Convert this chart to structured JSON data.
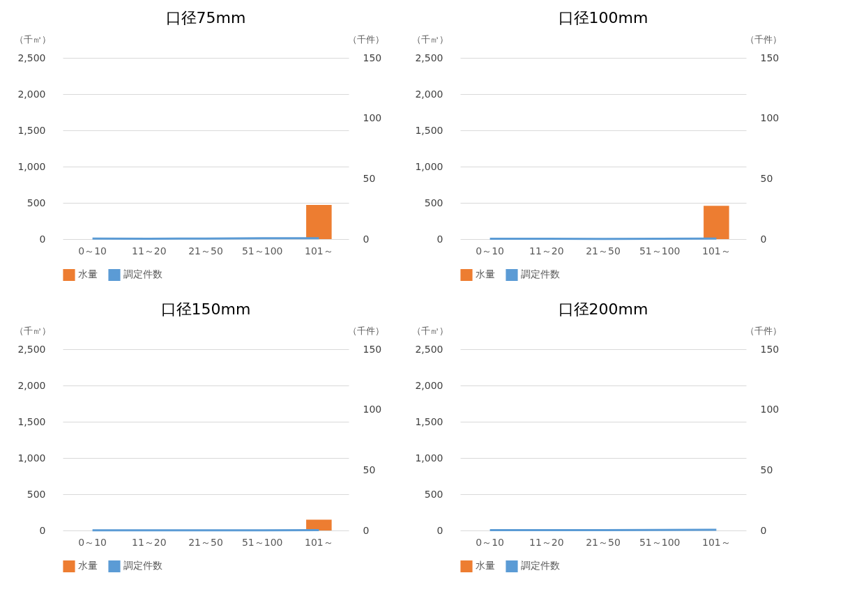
{
  "chart_data": [
    {
      "type": "bar",
      "title": "口径75mm",
      "ylabel": "（千㎥）",
      "y2label": "（千件）",
      "categories": [
        "0～10",
        "11～20",
        "21～50",
        "51～100",
        "101～"
      ],
      "series": [
        {
          "name": "水量",
          "type": "bar",
          "color": "#ed7d31",
          "values": [
            0,
            0,
            0,
            0,
            470
          ]
        },
        {
          "name": "調定件数",
          "type": "line",
          "axis": "y2",
          "color": "#5b9bd5",
          "values": [
            0.5,
            0.3,
            0.5,
            0.7,
            0.7
          ]
        }
      ],
      "ylim": [
        0,
        2500
      ],
      "yticks": [
        {
          "value": 0,
          "label": "0"
        },
        {
          "value": 500,
          "label": "500"
        },
        {
          "value": 1000,
          "label": "1,000"
        },
        {
          "value": 1500,
          "label": "1,500"
        },
        {
          "value": 2000,
          "label": "2,000"
        },
        {
          "value": 2500,
          "label": "2,500"
        }
      ],
      "y2lim": [
        0,
        150
      ],
      "y2ticks": [
        0,
        50,
        100,
        150
      ],
      "grid": "y",
      "legend": "bottom"
    },
    {
      "type": "bar",
      "title": "口径100mm",
      "ylabel": "（千㎥）",
      "y2label": "（千件）",
      "categories": [
        "0～10",
        "11～20",
        "21～50",
        "51～100",
        "101～"
      ],
      "series": [
        {
          "name": "水量",
          "type": "bar",
          "color": "#ed7d31",
          "values": [
            0,
            0,
            0,
            0,
            460
          ]
        },
        {
          "name": "調定件数",
          "type": "line",
          "axis": "y2",
          "color": "#5b9bd5",
          "values": [
            0.3,
            0.3,
            0.2,
            0.3,
            0.4
          ]
        }
      ],
      "ylim": [
        0,
        2500
      ],
      "yticks": [
        {
          "value": 0,
          "label": "0"
        },
        {
          "value": 500,
          "label": "500"
        },
        {
          "value": 1000,
          "label": "1,000"
        },
        {
          "value": 1500,
          "label": "1,500"
        },
        {
          "value": 2000,
          "label": "2,000"
        },
        {
          "value": 2500,
          "label": "2,500"
        }
      ],
      "y2lim": [
        0,
        150
      ],
      "y2ticks": [
        0,
        50,
        100,
        150
      ],
      "grid": "y",
      "legend": "bottom"
    },
    {
      "type": "bar",
      "title": "口径150mm",
      "ylabel": "（千㎥）",
      "y2label": "（千件）",
      "categories": [
        "0～10",
        "11～20",
        "21～50",
        "51～100",
        "101～"
      ],
      "series": [
        {
          "name": "水量",
          "type": "bar",
          "color": "#ed7d31",
          "values": [
            0,
            0,
            0,
            0,
            150
          ]
        },
        {
          "name": "調定件数",
          "type": "line",
          "axis": "y2",
          "color": "#5b9bd5",
          "values": [
            0.1,
            0.1,
            0.1,
            0.1,
            0.3
          ]
        }
      ],
      "ylim": [
        0,
        2500
      ],
      "yticks": [
        {
          "value": 0,
          "label": "0"
        },
        {
          "value": 500,
          "label": "500"
        },
        {
          "value": 1000,
          "label": "1,000"
        },
        {
          "value": 1500,
          "label": "1,500"
        },
        {
          "value": 2000,
          "label": "2,000"
        },
        {
          "value": 2500,
          "label": "2,500"
        }
      ],
      "y2lim": [
        0,
        150
      ],
      "y2ticks": [
        0,
        50,
        100,
        150
      ],
      "grid": "y",
      "legend": "bottom"
    },
    {
      "type": "bar",
      "title": "口径200mm",
      "ylabel": "（千㎥）",
      "y2label": "（千件）",
      "categories": [
        "0～10",
        "11～20",
        "21～50",
        "51～100",
        "101～"
      ],
      "series": [
        {
          "name": "水量",
          "type": "bar",
          "color": "#ed7d31",
          "values": [
            0,
            0,
            0,
            0,
            0
          ]
        },
        {
          "name": "調定件数",
          "type": "line",
          "axis": "y2",
          "color": "#5b9bd5",
          "values": [
            0.3,
            0.3,
            0.3,
            0.4,
            0.6
          ]
        }
      ],
      "ylim": [
        0,
        2500
      ],
      "yticks": [
        {
          "value": 0,
          "label": "0"
        },
        {
          "value": 500,
          "label": "500"
        },
        {
          "value": 1000,
          "label": "1,000"
        },
        {
          "value": 1500,
          "label": "1,500"
        },
        {
          "value": 2000,
          "label": "2,000"
        },
        {
          "value": 2500,
          "label": "2,500"
        }
      ],
      "y2lim": [
        0,
        150
      ],
      "y2ticks": [
        0,
        50,
        100,
        150
      ],
      "grid": "y",
      "legend": "bottom"
    }
  ]
}
